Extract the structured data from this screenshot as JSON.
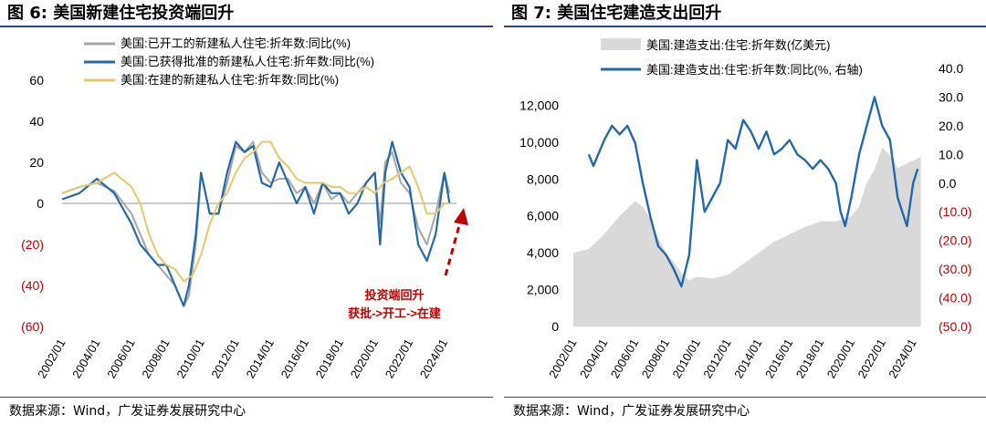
{
  "left": {
    "title": "图 6: 美国新建住宅投资端回升",
    "source": "数据来源：Wind，广发证券发展研究中心",
    "annotation": [
      "投资端回升",
      "获批->开工->在建"
    ]
  },
  "right": {
    "title": "图 7: 美国住宅建造支出回升",
    "source": "数据来源：Wind，广发证券发展研究中心"
  },
  "colors": {
    "gray": "#a6a6a6",
    "blue": "#2369a9",
    "yellow": "#e8c86a",
    "area": "#d9d9d9",
    "red": "#c00000",
    "border": "#2b4a7a"
  },
  "chart_data": [
    {
      "type": "line",
      "ylim": [
        -60,
        60
      ],
      "y_ticks": [
        60,
        40,
        20,
        0,
        -20,
        -40,
        -60
      ],
      "y_tick_labels": [
        "60",
        "40",
        "20",
        "0",
        "(20)",
        "(40)",
        "(60)"
      ],
      "x_tick_labels": [
        "2002/01",
        "2004/01",
        "2006/01",
        "2008/01",
        "2010/01",
        "2012/01",
        "2014/01",
        "2016/01",
        "2018/01",
        "2020/01",
        "2022/01",
        "2024/01"
      ],
      "x_range": [
        2002.0,
        2024.7
      ],
      "legend_position": "top",
      "series": [
        {
          "name": "美国:已开工的新建私人住宅:折年数:同比(%)",
          "color": "#a6a6a6",
          "x": [
            2002,
            2003,
            2004,
            2005,
            2006,
            2006.5,
            2007,
            2007.5,
            2008,
            2008.5,
            2009,
            2009.3,
            2009.7,
            2010,
            2010.5,
            2011,
            2011.5,
            2012,
            2012.5,
            2013,
            2013.5,
            2014,
            2014.5,
            2015,
            2015.5,
            2016,
            2016.5,
            2017,
            2017.5,
            2018,
            2018.5,
            2019,
            2019.5,
            2020,
            2020.3,
            2020.6,
            2021,
            2021.5,
            2022,
            2022.5,
            2023,
            2023.5,
            2024,
            2024.3
          ],
          "y": [
            5,
            8,
            10,
            6,
            -5,
            -15,
            -25,
            -30,
            -35,
            -40,
            -50,
            -45,
            -20,
            15,
            -5,
            -5,
            10,
            28,
            25,
            30,
            15,
            10,
            12,
            12,
            5,
            8,
            0,
            10,
            2,
            5,
            0,
            5,
            10,
            15,
            -10,
            20,
            25,
            10,
            5,
            -12,
            -20,
            -5,
            15,
            5
          ]
        },
        {
          "name": "美国:已获得批准的新建私人住宅:折年数:同比(%)",
          "color": "#2369a9",
          "x": [
            2002,
            2003,
            2004,
            2005,
            2006,
            2006.5,
            2007,
            2007.5,
            2008,
            2008.5,
            2009,
            2009.3,
            2009.7,
            2010,
            2010.5,
            2011,
            2011.5,
            2012,
            2012.5,
            2013,
            2013.5,
            2014,
            2014.5,
            2015,
            2015.5,
            2016,
            2016.5,
            2017,
            2017.5,
            2018,
            2018.5,
            2019,
            2019.5,
            2020,
            2020.3,
            2020.6,
            2021,
            2021.5,
            2022,
            2022.5,
            2023,
            2023.5,
            2024,
            2024.3
          ],
          "y": [
            2,
            5,
            12,
            5,
            -10,
            -20,
            -25,
            -30,
            -30,
            -40,
            -50,
            -40,
            -15,
            15,
            -5,
            -5,
            15,
            30,
            25,
            28,
            10,
            8,
            20,
            10,
            0,
            8,
            -5,
            10,
            5,
            5,
            -5,
            0,
            10,
            15,
            -20,
            15,
            30,
            15,
            8,
            -20,
            -28,
            -15,
            15,
            0
          ]
        },
        {
          "name": "美国:在建的新建私人住宅:折年数:同比(%)",
          "color": "#e8c86a",
          "x": [
            2002,
            2003,
            2004,
            2005,
            2006,
            2006.5,
            2007,
            2007.5,
            2008,
            2008.5,
            2009,
            2009.5,
            2010,
            2010.5,
            2011,
            2011.5,
            2012,
            2012.5,
            2013,
            2013.5,
            2014,
            2014.5,
            2015,
            2015.5,
            2016,
            2016.5,
            2017,
            2017.5,
            2018,
            2018.5,
            2019,
            2019.5,
            2020,
            2020.5,
            2021,
            2021.5,
            2022,
            2022.5,
            2023,
            2023.5,
            2024,
            2024.3
          ],
          "y": [
            5,
            8,
            10,
            15,
            8,
            0,
            -15,
            -25,
            -30,
            -32,
            -38,
            -35,
            -25,
            -10,
            0,
            5,
            15,
            22,
            25,
            30,
            30,
            22,
            18,
            12,
            10,
            10,
            10,
            8,
            8,
            5,
            5,
            8,
            5,
            10,
            12,
            15,
            18,
            8,
            -5,
            -5,
            0,
            0
          ]
        }
      ]
    },
    {
      "type": "area",
      "ylim": [
        0,
        14000
      ],
      "y_ticks": [
        0,
        2000,
        4000,
        6000,
        8000,
        10000,
        12000
      ],
      "y_tick_labels": [
        "0",
        "2,000",
        "4,000",
        "6,000",
        "8,000",
        "10,000",
        "12,000"
      ],
      "y2lim": [
        -50,
        40
      ],
      "y2_ticks": [
        40,
        30,
        20,
        10,
        0,
        -10,
        -20,
        -30,
        -40,
        -50
      ],
      "y2_tick_labels": [
        "40.0",
        "30.0",
        "20.0",
        "10.0",
        "0.0",
        "(10.0)",
        "(20.0)",
        "(30.0)",
        "(40.0)",
        "(50.0)"
      ],
      "x_tick_labels": [
        "2002/01",
        "2004/01",
        "2006/01",
        "2008/01",
        "2010/01",
        "2012/01",
        "2014/01",
        "2016/01",
        "2018/01",
        "2020/01",
        "2022/01",
        "2024/01"
      ],
      "x_range": [
        2002.0,
        2024.7
      ],
      "legend_position": "top",
      "series": [
        {
          "name": "美国:建造支出:住宅:折年数(亿美元)",
          "color": "#d9d9d9",
          "axis": "left",
          "x": [
            2002,
            2003,
            2004,
            2005,
            2006,
            2006.5,
            2007,
            2007.5,
            2008,
            2008.5,
            2009,
            2009.5,
            2010,
            2011,
            2012,
            2013,
            2014,
            2015,
            2016,
            2017,
            2018,
            2019,
            2020,
            2020.5,
            2021,
            2021.5,
            2022,
            2022.5,
            2023,
            2023.5,
            2024,
            2024.5
          ],
          "y": [
            4000,
            4200,
            5000,
            6000,
            6800,
            6500,
            5800,
            4800,
            4000,
            3500,
            2900,
            2500,
            2700,
            2600,
            2800,
            3400,
            4000,
            4600,
            5000,
            5400,
            5700,
            5700,
            6000,
            6500,
            7800,
            8500,
            9700,
            9300,
            8600,
            8800,
            9000,
            9200
          ]
        },
        {
          "name": "美国:建造支出:住宅:折年数:同比(%, 右轴)",
          "color": "#2369a9",
          "axis": "right",
          "x": [
            2003,
            2003.3,
            2004,
            2004.5,
            2005,
            2005.5,
            2006,
            2006.5,
            2007,
            2007.5,
            2008,
            2008.5,
            2009,
            2009.5,
            2010,
            2010.5,
            2011,
            2011.5,
            2012,
            2012.5,
            2013,
            2013.5,
            2014,
            2014.5,
            2015,
            2015.5,
            2016,
            2016.5,
            2017,
            2017.5,
            2018,
            2018.5,
            2019,
            2019.3,
            2019.6,
            2020,
            2020.5,
            2021,
            2021.5,
            2022,
            2022.5,
            2023,
            2023.3,
            2023.6,
            2024,
            2024.3
          ],
          "y": [
            10,
            6,
            15,
            20,
            17,
            20,
            14,
            0,
            -12,
            -22,
            -25,
            -30,
            -36,
            -25,
            8,
            -10,
            -5,
            0,
            15,
            12,
            22,
            18,
            12,
            18,
            10,
            12,
            15,
            10,
            8,
            5,
            8,
            5,
            0,
            -10,
            -15,
            -5,
            10,
            20,
            30,
            20,
            15,
            -5,
            -10,
            -15,
            0,
            5
          ]
        }
      ]
    }
  ]
}
